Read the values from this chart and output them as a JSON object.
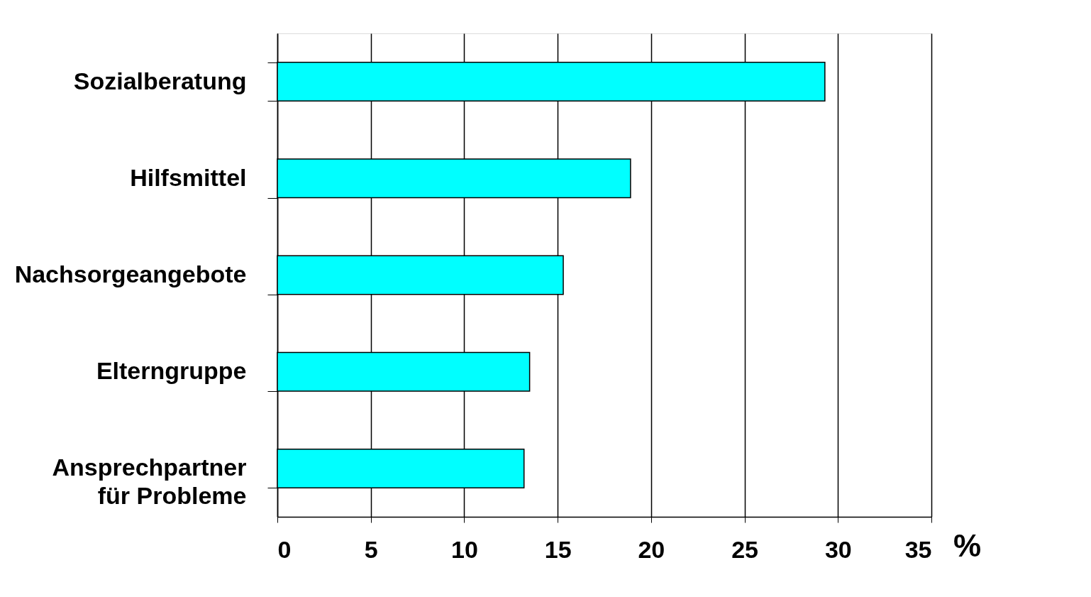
{
  "chart_data": {
    "type": "bar",
    "orientation": "horizontal",
    "categories": [
      "Sozialberatung",
      "Hilfsmittel",
      "Nachsorgeangebote",
      "Elterngruppe",
      "Ansprechpartner\nfür Probleme"
    ],
    "values": [
      29.3,
      18.9,
      15.3,
      13.5,
      13.2
    ],
    "color": "#00ffff",
    "xlabel": "%",
    "xlim": [
      0,
      35
    ],
    "xticks": [
      0,
      5,
      10,
      15,
      20,
      25,
      30,
      35
    ],
    "grid": "x"
  }
}
